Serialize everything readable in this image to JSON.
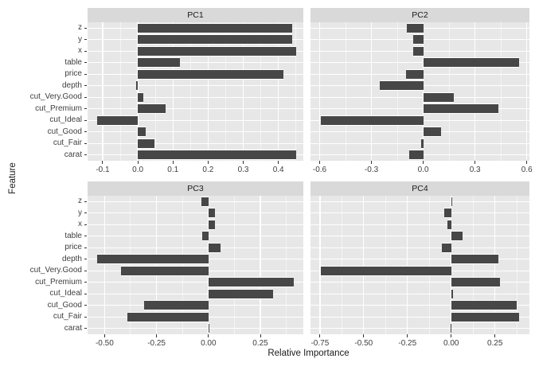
{
  "figure": {
    "x_axis_title": "Relative Importance",
    "y_axis_title": "Feature"
  },
  "chart_data": {
    "type": "bar",
    "orientation": "horizontal",
    "title": "",
    "xlabel": "Relative Importance",
    "ylabel": "Feature",
    "facet_layout": "2x2",
    "grid": true,
    "legend": "none",
    "categories_top_to_bottom": [
      "z",
      "y",
      "x",
      "table",
      "price",
      "depth",
      "cut_Very.Good",
      "cut_Premium",
      "cut_Ideal",
      "cut_Good",
      "cut_Fair",
      "carat"
    ],
    "panels": [
      {
        "title": "PC1",
        "values": [
          0.44,
          0.44,
          0.45,
          0.12,
          0.415,
          -0.004,
          0.015,
          0.08,
          -0.115,
          0.022,
          0.048,
          0.45
        ],
        "xlim": [
          -0.143,
          0.471
        ],
        "xticks": [
          -0.1,
          0,
          0.1,
          0.2,
          0.3,
          0.4
        ],
        "xtick_labels": [
          "-0.1",
          "0.0",
          "0.1",
          "0.2",
          "0.3",
          "0.4"
        ]
      },
      {
        "title": "PC2",
        "values": [
          -0.095,
          -0.06,
          -0.06,
          0.555,
          -0.1,
          -0.25,
          0.175,
          0.435,
          -0.595,
          0.105,
          -0.013,
          -0.08
        ],
        "xlim": [
          -0.653,
          0.615
        ],
        "xticks": [
          -0.6,
          -0.3,
          0,
          0.3,
          0.6
        ],
        "xtick_labels": [
          "-0.6",
          "-0.3",
          "0.0",
          "0.3",
          "0.6"
        ]
      },
      {
        "title": "PC3",
        "values": [
          -0.035,
          0.03,
          0.03,
          -0.03,
          0.06,
          -0.535,
          -0.42,
          0.41,
          0.31,
          -0.31,
          -0.39,
          0.005
        ],
        "xlim": [
          -0.582,
          0.457
        ],
        "xticks": [
          -0.5,
          -0.25,
          0,
          0.25
        ],
        "xtick_labels": [
          "-0.50",
          "-0.25",
          "0.00",
          "0.25"
        ]
      },
      {
        "title": "PC4",
        "values": [
          0.005,
          -0.04,
          -0.02,
          0.065,
          -0.055,
          0.27,
          -0.745,
          0.28,
          0.01,
          0.375,
          0.39,
          -0.004
        ],
        "xlim": [
          -0.804,
          0.447
        ],
        "xticks": [
          -0.75,
          -0.5,
          -0.25,
          0,
          0.25
        ],
        "xtick_labels": [
          "-0.75",
          "-0.50",
          "-0.25",
          "0.00",
          "0.25"
        ]
      }
    ],
    "colors": {
      "bar": "#474747",
      "panel_background": "#E7E7E7",
      "strip_background": "#D9D9D9",
      "grid_major": "#FFFFFF",
      "tick_mark": "#333333",
      "tick_text": "#404040",
      "title_text": "#1A1A1A",
      "figure_background": "#FFFFFF"
    }
  }
}
